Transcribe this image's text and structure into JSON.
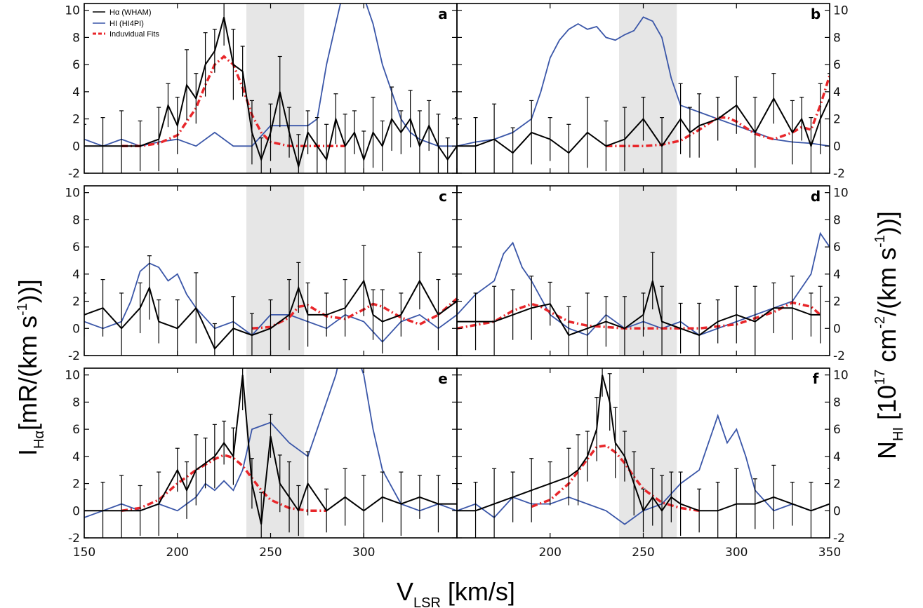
{
  "figure": {
    "xlabel": {
      "main": "V",
      "sub": "LSR",
      "rest": " [km/s]"
    },
    "ylabel_left": {
      "main": "I",
      "sub": "Hα",
      "rest": "[mR/(km s",
      "sup": "-1",
      "close": "))]"
    },
    "ylabel_right": {
      "main": "N",
      "sub": "HI",
      "rest1": " [10",
      "sup1": "17",
      "rest2": " cm",
      "sup2": "-2",
      "rest3": "/(km s",
      "sup3": "-1",
      "close": "))]"
    },
    "legend": [
      {
        "label": "Hα (WHAM)",
        "color": "#000000",
        "style": "solid"
      },
      {
        "label": "HI (HI4PI)",
        "color": "#3a56a8",
        "style": "solid"
      },
      {
        "label": "Induvidual Fits",
        "color": "#e8262a",
        "style": "dashed"
      }
    ],
    "colors": {
      "halpha": "#000000",
      "hi": "#3a56a8",
      "fit": "#e8262a",
      "shade": "#e6e6e6"
    }
  },
  "chart_data": [
    {
      "panel": "a",
      "type": "line",
      "xlim": [
        150,
        350
      ],
      "ylim": [
        -2,
        10.5
      ],
      "xticks": [],
      "yticks_left": [
        "10",
        "8",
        "6",
        "4",
        "2",
        "0",
        "-2"
      ],
      "yticks_right": [],
      "shaded_region": [
        237,
        268
      ],
      "series": [
        {
          "name": "Hα (WHAM)",
          "kind": "halpha",
          "x": [
            150,
            160,
            170,
            180,
            190,
            195,
            200,
            205,
            210,
            215,
            220,
            225,
            230,
            235,
            240,
            245,
            250,
            255,
            260,
            265,
            270,
            275,
            280,
            285,
            290,
            295,
            300,
            305,
            310,
            315,
            320,
            325,
            330,
            335,
            340,
            345,
            350
          ],
          "y": [
            0,
            0,
            0,
            0,
            0.5,
            3,
            1.5,
            4.5,
            3.5,
            6,
            7,
            9.5,
            6,
            5.5,
            1,
            -1,
            1,
            4,
            1,
            -1.5,
            1,
            0,
            -1,
            2,
            0,
            1,
            -1,
            1,
            0,
            2,
            1,
            2,
            0,
            1.5,
            0,
            -1,
            0
          ]
        },
        {
          "kind": "hi",
          "x": [
            150,
            160,
            170,
            180,
            190,
            200,
            210,
            220,
            230,
            240,
            250,
            260,
            270,
            275,
            280,
            285,
            290,
            295,
            300,
            305,
            310,
            315,
            320,
            325,
            330,
            340,
            350
          ],
          "y": [
            0.5,
            0,
            0.5,
            0,
            0.3,
            0.5,
            0,
            1,
            0,
            0,
            1.5,
            1.5,
            1.5,
            2,
            6,
            9,
            12,
            13,
            11,
            9,
            6,
            4,
            2,
            1,
            0.5,
            0,
            0
          ]
        },
        {
          "kind": "fit",
          "x": [
            170,
            180,
            190,
            200,
            210,
            215,
            220,
            225,
            230,
            235,
            240,
            245,
            250,
            260,
            270,
            280,
            290
          ],
          "y": [
            0,
            0,
            0.2,
            0.8,
            2.8,
            4.5,
            6,
            6.6,
            6,
            4.3,
            2.3,
            1,
            0.3,
            0,
            0,
            0,
            0
          ]
        }
      ]
    },
    {
      "panel": "b",
      "type": "line",
      "xlim": [
        150,
        350
      ],
      "ylim": [
        -2,
        10.5
      ],
      "xticks": [],
      "yticks_left": [],
      "yticks_right": [
        "10",
        "8",
        "6",
        "4",
        "2",
        "0",
        "-2"
      ],
      "shaded_region": [
        237,
        268
      ],
      "series": [
        {
          "kind": "halpha",
          "x": [
            150,
            160,
            170,
            180,
            190,
            200,
            210,
            220,
            230,
            240,
            250,
            260,
            270,
            275,
            280,
            290,
            300,
            310,
            320,
            330,
            335,
            340,
            345,
            350
          ],
          "y": [
            0,
            0,
            0.5,
            -0.5,
            1,
            0.5,
            -0.5,
            1,
            0,
            0.5,
            2,
            0,
            2,
            1,
            1.5,
            2,
            3,
            1,
            3.5,
            1,
            2,
            0,
            2,
            3.5
          ]
        },
        {
          "kind": "hi",
          "x": [
            150,
            160,
            170,
            180,
            190,
            195,
            200,
            205,
            210,
            215,
            220,
            225,
            230,
            235,
            240,
            245,
            250,
            255,
            260,
            265,
            270,
            280,
            290,
            300,
            310,
            320,
            330,
            340,
            350
          ],
          "y": [
            0,
            0.3,
            0.5,
            1,
            2,
            4,
            6.5,
            7.8,
            8.6,
            9,
            8.6,
            8.8,
            8,
            7.8,
            8.2,
            8.5,
            9.5,
            9.2,
            8,
            5,
            3,
            2.5,
            2,
            1.5,
            1,
            0.5,
            0.3,
            0.2,
            0
          ]
        },
        {
          "kind": "fit",
          "x": [
            230,
            250,
            260,
            270,
            280,
            290,
            295,
            300,
            310,
            320,
            330,
            335,
            340,
            345,
            350
          ],
          "y": [
            0,
            0,
            0.1,
            0.4,
            1.2,
            2.1,
            2.1,
            1.8,
            0.9,
            0.5,
            1,
            1.4,
            1.2,
            3,
            5.2
          ]
        }
      ]
    },
    {
      "panel": "c",
      "type": "line",
      "xlim": [
        150,
        350
      ],
      "ylim": [
        -2,
        10.5
      ],
      "xticks": [],
      "yticks_left": [
        "10",
        "8",
        "6",
        "4",
        "2",
        "0",
        "-2"
      ],
      "yticks_right": [],
      "shaded_region": [
        237,
        268
      ],
      "series": [
        {
          "kind": "halpha",
          "x": [
            150,
            160,
            170,
            180,
            185,
            190,
            200,
            210,
            220,
            230,
            240,
            250,
            260,
            265,
            270,
            280,
            290,
            300,
            305,
            310,
            320,
            330,
            340,
            350
          ],
          "y": [
            1,
            1.5,
            0,
            1.5,
            3,
            0.5,
            0,
            1.5,
            -1.5,
            0,
            -0.5,
            0,
            1,
            3,
            1,
            1,
            1.5,
            3.5,
            1,
            0.5,
            1,
            3.5,
            1,
            2
          ]
        },
        {
          "kind": "hi",
          "x": [
            150,
            160,
            170,
            175,
            180,
            185,
            190,
            195,
            200,
            205,
            210,
            220,
            230,
            240,
            250,
            260,
            270,
            280,
            290,
            300,
            310,
            320,
            330,
            340,
            350
          ],
          "y": [
            0.5,
            0,
            0.5,
            2,
            4.2,
            4.8,
            4.5,
            3.5,
            4,
            2.5,
            1.5,
            0,
            0.5,
            -0.5,
            1,
            1,
            0.5,
            0,
            1,
            0.5,
            -1,
            0.5,
            1,
            0,
            1
          ]
        },
        {
          "kind": "fit",
          "x": [
            240,
            250,
            260,
            265,
            270,
            280,
            290,
            300,
            305,
            310,
            320,
            330,
            340,
            350
          ],
          "y": [
            0,
            0.1,
            0.8,
            1.6,
            1.7,
            0.9,
            0.7,
            1.4,
            1.8,
            1.6,
            0.8,
            0.3,
            1,
            2.2
          ]
        }
      ]
    },
    {
      "panel": "d",
      "type": "line",
      "xlim": [
        150,
        350
      ],
      "ylim": [
        -2,
        10.5
      ],
      "xticks": [],
      "yticks_left": [],
      "yticks_right": [
        "10",
        "8",
        "6",
        "4",
        "2",
        "0",
        "-2"
      ],
      "shaded_region": [
        237,
        268
      ],
      "series": [
        {
          "kind": "halpha",
          "x": [
            150,
            160,
            170,
            180,
            190,
            200,
            210,
            220,
            230,
            240,
            250,
            255,
            260,
            270,
            280,
            290,
            300,
            310,
            320,
            330,
            340,
            345
          ],
          "y": [
            0.5,
            0.5,
            0.5,
            1,
            1.5,
            1.8,
            -0.5,
            0,
            0.5,
            0,
            1,
            3.5,
            0.5,
            0,
            -0.5,
            0.5,
            1,
            0.5,
            1.5,
            1.5,
            1,
            1
          ]
        },
        {
          "kind": "hi",
          "x": [
            150,
            160,
            170,
            175,
            180,
            185,
            190,
            200,
            210,
            220,
            230,
            240,
            250,
            260,
            270,
            280,
            290,
            300,
            310,
            320,
            330,
            340,
            345,
            350
          ],
          "y": [
            1,
            2.5,
            3.5,
            5.5,
            6.3,
            4.5,
            3.5,
            1,
            0,
            -0.5,
            1,
            0,
            0.5,
            0,
            0.5,
            -0.5,
            0,
            0.5,
            1,
            1.5,
            2,
            4,
            7,
            6
          ]
        },
        {
          "kind": "fit",
          "x": [
            150,
            170,
            180,
            190,
            195,
            200,
            210,
            220,
            240,
            260,
            280,
            300,
            320,
            330,
            340,
            345
          ],
          "y": [
            0,
            0.5,
            1.3,
            1.8,
            1.6,
            1.2,
            0.5,
            0.2,
            0,
            0,
            0,
            0.3,
            1.2,
            1.9,
            1.6,
            1
          ]
        }
      ]
    },
    {
      "panel": "e",
      "type": "line",
      "xlim": [
        150,
        350
      ],
      "ylim": [
        -2,
        10.5
      ],
      "xticks": [
        "150",
        "200",
        "250",
        "300"
      ],
      "yticks_left": [
        "10",
        "8",
        "6",
        "4",
        "2",
        "0",
        "-2"
      ],
      "yticks_right": [],
      "shaded_region": [
        237,
        268
      ],
      "series": [
        {
          "kind": "halpha",
          "x": [
            150,
            160,
            170,
            180,
            190,
            200,
            205,
            210,
            215,
            220,
            225,
            230,
            235,
            240,
            245,
            250,
            255,
            260,
            265,
            270,
            280,
            290,
            300,
            310,
            320,
            330,
            340,
            350
          ],
          "y": [
            0,
            0,
            0,
            0,
            0.5,
            3,
            1.5,
            3,
            3.5,
            4,
            5,
            4,
            10,
            2,
            -1,
            5.5,
            2,
            1,
            0,
            2,
            0,
            1,
            0,
            1,
            0.5,
            1,
            0.5,
            0.5
          ]
        },
        {
          "kind": "hi",
          "x": [
            150,
            160,
            170,
            180,
            190,
            200,
            210,
            215,
            220,
            225,
            230,
            235,
            240,
            250,
            260,
            270,
            280,
            285,
            290,
            295,
            300,
            305,
            310,
            320,
            330,
            340,
            350
          ],
          "y": [
            -0.5,
            0,
            0.5,
            0,
            0.5,
            0,
            1,
            2,
            1.5,
            2.2,
            1.5,
            3,
            6,
            6.5,
            5,
            4,
            8,
            10,
            13,
            12,
            10,
            6,
            3,
            0.5,
            0,
            0.5,
            0
          ]
        },
        {
          "kind": "fit",
          "x": [
            170,
            180,
            190,
            200,
            210,
            220,
            225,
            230,
            235,
            240,
            245,
            250,
            260,
            270,
            280
          ],
          "y": [
            0,
            0.2,
            0.8,
            2,
            3,
            3.8,
            4.1,
            3.9,
            3.3,
            2.4,
            1.5,
            0.8,
            0.2,
            0,
            0
          ]
        }
      ]
    },
    {
      "panel": "f",
      "type": "line",
      "xlim": [
        150,
        350
      ],
      "ylim": [
        -2,
        10.5
      ],
      "xticks": [
        "200",
        "250",
        "300",
        "350"
      ],
      "yticks_left": [],
      "yticks_right": [
        "10",
        "8",
        "6",
        "4",
        "2",
        "0",
        "-2"
      ],
      "shaded_region": [
        237,
        268
      ],
      "series": [
        {
          "kind": "halpha",
          "x": [
            150,
            160,
            170,
            180,
            190,
            200,
            210,
            215,
            220,
            225,
            228,
            232,
            235,
            240,
            245,
            250,
            255,
            260,
            265,
            270,
            280,
            290,
            300,
            310,
            320,
            330,
            340,
            350
          ],
          "y": [
            0,
            0,
            0.5,
            1,
            1.5,
            2,
            2.5,
            3,
            4,
            6,
            10,
            8,
            5,
            4,
            2,
            0,
            1,
            0,
            1,
            0.5,
            0,
            0,
            0.5,
            0.5,
            1,
            0.5,
            0,
            0.5
          ]
        },
        {
          "kind": "hi",
          "x": [
            150,
            160,
            170,
            180,
            190,
            200,
            210,
            220,
            230,
            240,
            250,
            260,
            270,
            280,
            285,
            290,
            295,
            300,
            305,
            310,
            320,
            330,
            340,
            350
          ],
          "y": [
            0,
            0.5,
            -0.5,
            1,
            0.5,
            0.5,
            1,
            0.5,
            0,
            -1,
            0,
            0.5,
            2,
            3,
            5,
            7,
            5,
            6,
            4,
            1.5,
            0,
            0.5,
            0,
            0.5
          ]
        },
        {
          "kind": "fit",
          "x": [
            190,
            200,
            210,
            220,
            225,
            230,
            235,
            240,
            245,
            250,
            260,
            270,
            280
          ],
          "y": [
            0.3,
            0.8,
            2,
            3.8,
            4.7,
            4.8,
            4.3,
            3.5,
            2.5,
            1.6,
            0.6,
            0.2,
            0
          ]
        }
      ]
    }
  ]
}
